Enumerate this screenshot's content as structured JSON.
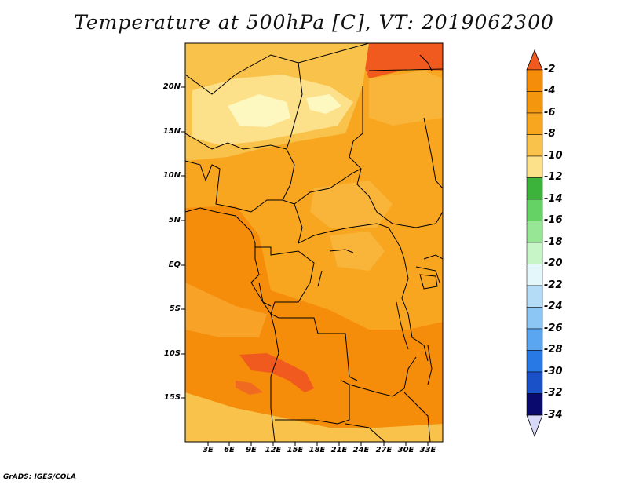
{
  "title": "Temperature at 500hPa [C], VT: 2019062300",
  "credit": "GrADS: IGES/COLA",
  "map": {
    "variable": "Temperature",
    "level": "500hPa",
    "units": "C",
    "valid_time": "2019062300",
    "lat_labels": [
      "20N",
      "15N",
      "10N",
      "5N",
      "EQ",
      "5S",
      "10S",
      "15S"
    ],
    "lon_labels": [
      "3E",
      "6E",
      "9E",
      "12E",
      "15E",
      "18E",
      "21E",
      "24E",
      "27E",
      "30E",
      "33E"
    ]
  },
  "colorbar": {
    "labels": [
      "-2",
      "-4",
      "-6",
      "-8",
      "-10",
      "-12",
      "-14",
      "-16",
      "-18",
      "-20",
      "-22",
      "-24",
      "-26",
      "-28",
      "-30",
      "-32",
      "-34"
    ],
    "colors": [
      "#f05a1e",
      "#f58c0a",
      "#f8a620",
      "#f9c24a",
      "#fde18a",
      "#fdf7c0",
      "#3cb43c",
      "#64d264",
      "#96e696",
      "#c8f5c8",
      "#e4f7fb",
      "#b4dcf7",
      "#8cc6f5",
      "#5aa6f0",
      "#2878e6",
      "#1a50c8",
      "#1a32a0",
      "#0a0a6e",
      "#d8d8f8"
    ]
  },
  "field_colors": {
    "base": "#f8a620",
    "warm": "#f58c0a",
    "hot": "#f05a1e",
    "cool": "#f9c24a",
    "cooler": "#fde18a",
    "coolest": "#fdf7c0",
    "border": "#000000"
  }
}
